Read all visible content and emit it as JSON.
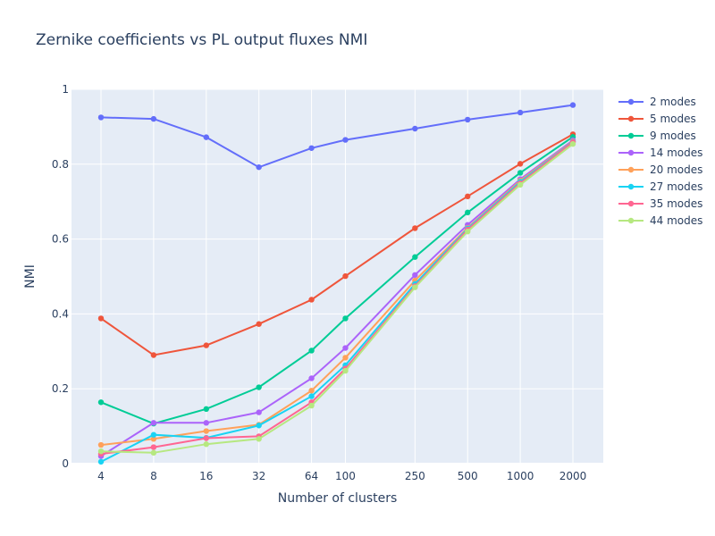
{
  "chart_data": {
    "type": "line",
    "title": "Zernike coefficients vs PL output fluxes NMI",
    "xlabel": "Number of clusters",
    "ylabel": "NMI",
    "x_scale": "log",
    "x": [
      4,
      8,
      16,
      32,
      64,
      100,
      250,
      500,
      1000,
      2000
    ],
    "x_tick_labels": [
      "4",
      "8",
      "16",
      "32",
      "64",
      "100",
      "250",
      "500",
      "1000",
      "2000"
    ],
    "ylim": [
      0,
      1
    ],
    "y_ticks": [
      0,
      0.2,
      0.4,
      0.6,
      0.8,
      1
    ],
    "y_tick_labels": [
      "0",
      "0.2",
      "0.4",
      "0.6",
      "0.8",
      "1"
    ],
    "grid": true,
    "legend_position": "right",
    "series": [
      {
        "name": "2 modes",
        "color": "#636efa",
        "values": [
          0.925,
          0.921,
          0.872,
          0.792,
          0.843,
          0.865,
          0.895,
          0.919,
          0.938,
          0.958
        ]
      },
      {
        "name": "5 modes",
        "color": "#ef553b",
        "values": [
          0.388,
          0.29,
          0.316,
          0.373,
          0.438,
          0.501,
          0.629,
          0.714,
          0.801,
          0.88
        ]
      },
      {
        "name": "9 modes",
        "color": "#00cc96",
        "values": [
          0.164,
          0.107,
          0.146,
          0.204,
          0.302,
          0.388,
          0.552,
          0.671,
          0.777,
          0.873
        ]
      },
      {
        "name": "14 modes",
        "color": "#ab63fa",
        "values": [
          0.02,
          0.109,
          0.109,
          0.137,
          0.228,
          0.309,
          0.504,
          0.638,
          0.76,
          0.864
        ]
      },
      {
        "name": "20 modes",
        "color": "#ffa15a",
        "values": [
          0.05,
          0.066,
          0.087,
          0.104,
          0.195,
          0.283,
          0.489,
          0.63,
          0.756,
          0.861
        ]
      },
      {
        "name": "27 modes",
        "color": "#19d3f3",
        "values": [
          0.005,
          0.077,
          0.069,
          0.102,
          0.18,
          0.263,
          0.48,
          0.628,
          0.753,
          0.86
        ]
      },
      {
        "name": "35 modes",
        "color": "#ff6692",
        "values": [
          0.026,
          0.044,
          0.068,
          0.073,
          0.164,
          0.254,
          0.474,
          0.625,
          0.749,
          0.859
        ]
      },
      {
        "name": "44 modes",
        "color": "#b6e880",
        "values": [
          0.033,
          0.029,
          0.052,
          0.066,
          0.155,
          0.248,
          0.471,
          0.62,
          0.745,
          0.854
        ]
      }
    ]
  }
}
